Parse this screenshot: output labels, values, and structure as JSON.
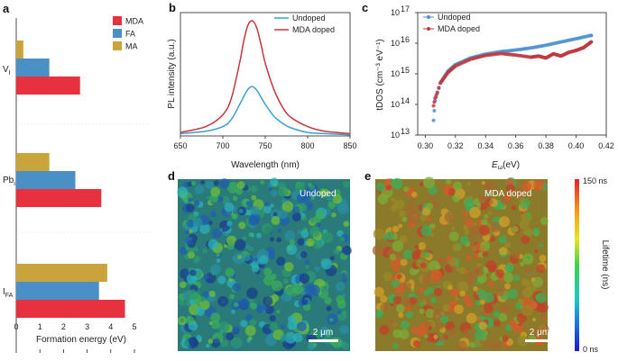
{
  "panels": {
    "a": "a",
    "b": "b",
    "c": "c",
    "d": "d",
    "e": "e"
  },
  "colors": {
    "MDA": "#e8313f",
    "FA": "#4a8fc6",
    "MA": "#c9a43a",
    "undoped": "#3aa0d1",
    "doped": "#c8353b",
    "tdos_undoped": "#4a90cf",
    "tdos_doped": "#c0393f"
  },
  "chart_data": [
    {
      "id": "a",
      "type": "bar",
      "orientation": "horizontal",
      "categories": [
        "V",
        "Pb",
        "I"
      ],
      "category_subscripts": [
        "I",
        "i",
        "FA"
      ],
      "series": [
        {
          "name": "MDA",
          "values": [
            2.7,
            3.6,
            4.6
          ]
        },
        {
          "name": "FA",
          "values": [
            1.4,
            2.5,
            3.5
          ]
        },
        {
          "name": "MA",
          "values": [
            0.3,
            1.4,
            3.85
          ]
        }
      ],
      "xlabel": "Formation energy (eV)",
      "xlim": [
        0,
        5
      ],
      "xticks": [
        "0",
        "1",
        "2",
        "3",
        "4",
        "5"
      ],
      "legend": "top-right"
    },
    {
      "id": "b",
      "type": "line",
      "series": [
        {
          "name": "Undoped",
          "x": [
            650,
            680,
            700,
            710,
            720,
            725,
            730,
            735,
            740,
            745,
            750,
            760,
            770,
            780,
            800,
            820,
            850
          ],
          "y": [
            0.02,
            0.04,
            0.08,
            0.14,
            0.27,
            0.34,
            0.4,
            0.42,
            0.39,
            0.33,
            0.27,
            0.17,
            0.11,
            0.07,
            0.03,
            0.02,
            0.01
          ]
        },
        {
          "name": "MDA doped",
          "x": [
            650,
            680,
            700,
            710,
            720,
            725,
            730,
            735,
            740,
            745,
            750,
            760,
            770,
            780,
            800,
            820,
            850
          ],
          "y": [
            0.03,
            0.08,
            0.18,
            0.32,
            0.63,
            0.82,
            0.95,
            0.98,
            0.92,
            0.78,
            0.62,
            0.4,
            0.25,
            0.16,
            0.08,
            0.04,
            0.02
          ]
        }
      ],
      "xlabel": "Wavelength (nm)",
      "ylabel": "PL intensity (a.u.)",
      "xlim": [
        650,
        850
      ],
      "ylim": [
        0,
        1.05
      ],
      "xticks": [
        "650",
        "700",
        "750",
        "800",
        "850"
      ],
      "legend": "top-right"
    },
    {
      "id": "c",
      "type": "scatter",
      "yscale": "log",
      "series": [
        {
          "name": "Undoped",
          "x": [
            0.3055,
            0.3065,
            0.308,
            0.31,
            0.315,
            0.32,
            0.33,
            0.34,
            0.35,
            0.36,
            0.37,
            0.38,
            0.39,
            0.4,
            0.41
          ],
          "y": [
            30000000000000.0,
            130000000000000.0,
            230000000000000.0,
            500000000000000.0,
            1200000000000000.0,
            2000000000000000.0,
            3300000000000000.0,
            4400000000000000.0,
            5300000000000000.0,
            6000000000000000.0,
            7000000000000000.0,
            8600000000000000.0,
            1.1e+16,
            1.4e+16,
            1.8e+16
          ]
        },
        {
          "name": "MDA doped",
          "x": [
            0.3055,
            0.3065,
            0.308,
            0.31,
            0.315,
            0.32,
            0.33,
            0.34,
            0.35,
            0.36,
            0.37,
            0.375,
            0.38,
            0.385,
            0.39,
            0.395,
            0.4,
            0.405,
            0.41
          ],
          "y": [
            90000000000000.0,
            160000000000000.0,
            250000000000000.0,
            500000000000000.0,
            1100000000000000.0,
            1800000000000000.0,
            3000000000000000.0,
            4000000000000000.0,
            4600000000000000.0,
            4100000000000000.0,
            3500000000000000.0,
            3800000000000000.0,
            3300000000000000.0,
            4500000000000000.0,
            3800000000000000.0,
            5000000000000000.0,
            5800000000000000.0,
            7200000000000000.0,
            1.1e+16
          ]
        }
      ],
      "xlabel_main": "E",
      "xlabel_sub": "ω",
      "xlabel_unit": "(eV)",
      "ylabel": "tDOS (cm⁻³ eV⁻¹)",
      "xlim": [
        0.295,
        0.42
      ],
      "ylim": [
        10000000000000.0,
        1e+17
      ],
      "xticks": [
        "0.30",
        "0.32",
        "0.34",
        "0.36",
        "0.38",
        "0.40",
        "0.42"
      ],
      "ytick_base": [
        "10",
        "10",
        "10",
        "10",
        "10"
      ],
      "ytick_exp": [
        "13",
        "14",
        "15",
        "16",
        "17"
      ],
      "legend": "top-left"
    },
    {
      "id": "d",
      "type": "heatmap",
      "label": "Undoped",
      "scalebar": "2 μm"
    },
    {
      "id": "e",
      "type": "heatmap",
      "label": "MDA doped",
      "scalebar": "2 μm",
      "colorbar_max": "150 ns",
      "colorbar_min": "0 ns",
      "colorbar_title": "Lifetime (ns)"
    }
  ]
}
